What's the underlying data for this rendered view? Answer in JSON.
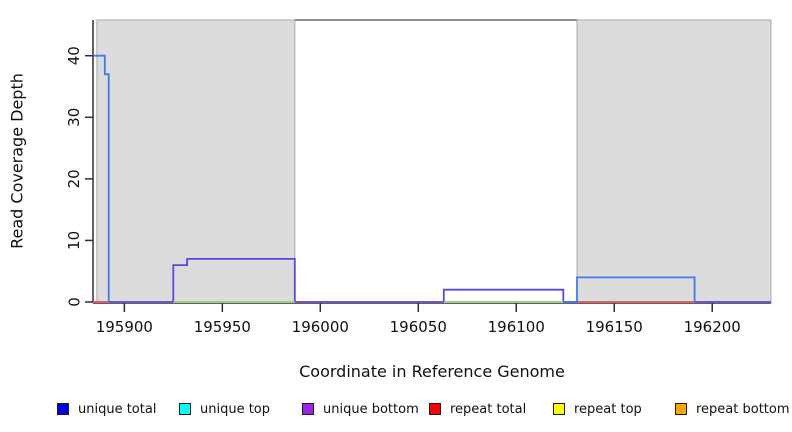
{
  "chart_data": {
    "type": "line",
    "title": "",
    "xlabel": "Coordinate in Reference Genome",
    "ylabel": "Read Coverage Depth",
    "xlim": [
      195884,
      196230
    ],
    "ylim": [
      0,
      45.8
    ],
    "xticks": [
      195900,
      195950,
      196000,
      196050,
      196100,
      196150,
      196200
    ],
    "yticks": [
      0,
      10,
      20,
      30,
      40
    ],
    "grid": false,
    "legend_position": "bottom",
    "shaded_regions": [
      {
        "x0": 195886,
        "x1": 195987,
        "fill": "#dcdcdc",
        "stroke": "#a8a8a8"
      },
      {
        "x0": 196131,
        "x1": 196230,
        "fill": "#dcdcdc",
        "stroke": "#a8a8a8"
      }
    ],
    "top_boundary_segment": {
      "x0": 195987,
      "x1": 196131,
      "color": "#8f8f8f"
    },
    "series": [
      {
        "name": "unique top",
        "color": "#00ffff",
        "draw_color": "#00ffff",
        "paths": [
          [
            [
              195884,
              0
            ],
            [
              196230,
              0
            ]
          ]
        ]
      },
      {
        "name": "repeat top",
        "color": "#ffff00",
        "draw_color": "#ffff00",
        "paths": [
          [
            [
              195884,
              0
            ],
            [
              196230,
              0
            ]
          ]
        ]
      },
      {
        "name": "repeat bottom",
        "color": "#ffa500",
        "draw_color": "#ffa500",
        "paths": [
          [
            [
              195884,
              0
            ],
            [
              196230,
              0
            ]
          ]
        ]
      },
      {
        "name": "repeat total",
        "color": "#ff0000",
        "draw_color": "#d8537a",
        "paths": [
          [
            [
              195884,
              0
            ],
            [
              195892,
              0
            ]
          ],
          [
            [
              196131,
              0
            ],
            [
              196191,
              0
            ]
          ]
        ]
      },
      {
        "name": "unique bottom",
        "color": "#a020f0",
        "draw_color": "#5b46e0",
        "paths": [
          [
            [
              195892,
              0
            ],
            [
              195925,
              0
            ],
            [
              195925,
              6
            ],
            [
              195932,
              6
            ],
            [
              195932,
              7
            ],
            [
              195987,
              7
            ],
            [
              195987,
              0
            ],
            [
              196063,
              0
            ],
            [
              196063,
              2
            ],
            [
              196124,
              2
            ],
            [
              196124,
              0
            ],
            [
              196131,
              0
            ]
          ],
          [
            [
              196191,
              0
            ],
            [
              196230,
              0
            ]
          ]
        ]
      },
      {
        "name": "unique total",
        "color": "#0000ee",
        "draw_color": "#3e7bf0",
        "paths": [
          [
            [
              195884,
              40
            ],
            [
              195890,
              40
            ],
            [
              195890,
              37
            ],
            [
              195892,
              37
            ],
            [
              195892,
              0
            ]
          ],
          [
            [
              196124,
              0
            ],
            [
              196131,
              0
            ],
            [
              196131,
              4
            ],
            [
              196191,
              4
            ],
            [
              196191,
              0
            ]
          ]
        ]
      }
    ],
    "baseline_overlays": [
      {
        "color": "#92d292",
        "y": 0,
        "x0": 195925,
        "x1": 195987
      },
      {
        "color": "#92d292",
        "y": 0,
        "x0": 196063,
        "x1": 196124
      }
    ]
  },
  "legend": {
    "items": [
      {
        "label": "unique total",
        "color": "#0000ee"
      },
      {
        "label": "unique top",
        "color": "#00ffff"
      },
      {
        "label": "unique bottom",
        "color": "#a020f0"
      },
      {
        "label": "repeat total",
        "color": "#ff0000"
      },
      {
        "label": "repeat top",
        "color": "#ffff00"
      },
      {
        "label": "repeat bottom",
        "color": "#ffa500"
      }
    ]
  }
}
